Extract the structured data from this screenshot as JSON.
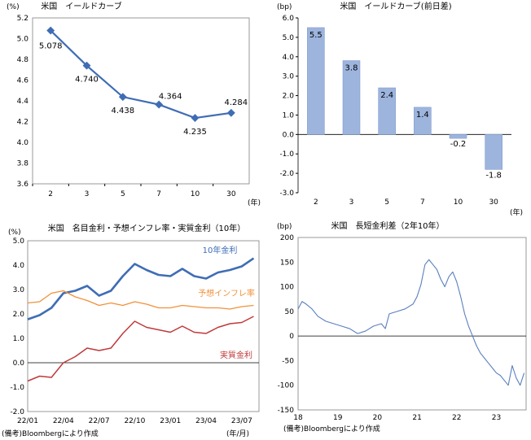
{
  "colors": {
    "blue": "#3f6db5",
    "bar": "#9db4dd",
    "bar_stroke": "#7f9ccf",
    "orange": "#f1913b",
    "red": "#c0393b",
    "lightblue": "#5a7fbf",
    "axis": "#000000",
    "grid": "#bfbfbf"
  },
  "chart_data": [
    {
      "type": "line",
      "title": "米国　イールドカーブ",
      "unit": "(%)",
      "xunit": "(年)",
      "categories": [
        "2",
        "3",
        "5",
        "7",
        "10",
        "30"
      ],
      "series": [
        {
          "values": [
            5.078,
            4.74,
            4.438,
            4.364,
            4.235,
            4.284
          ]
        }
      ],
      "data_labels": [
        "5.078",
        "4.740",
        "4.438",
        "4.364",
        "4.235",
        "4.284"
      ],
      "ylim": [
        3.6,
        5.2
      ],
      "yticks": [
        "5.2",
        "5.0",
        "4.8",
        "4.6",
        "4.4",
        "4.2",
        "4.0",
        "3.8",
        "3.6"
      ]
    },
    {
      "type": "bar",
      "title": "米国　イールドカーブ(前日差)",
      "unit": "(bp)",
      "xunit": "(年)",
      "categories": [
        "2",
        "3",
        "5",
        "7",
        "10",
        "30"
      ],
      "values": [
        5.5,
        3.8,
        2.4,
        1.4,
        -0.2,
        -1.8
      ],
      "data_labels": [
        "5.5",
        "3.8",
        "2.4",
        "1.4",
        "-0.2",
        "-1.8"
      ],
      "ylim": [
        -3.0,
        6.0
      ],
      "yticks": [
        "6.0",
        "5.0",
        "4.0",
        "3.0",
        "2.0",
        "1.0",
        "0.0",
        "-1.0",
        "-2.0",
        "-3.0"
      ]
    },
    {
      "type": "line",
      "title": "米国　名目金利・予想インフレ率・実質金利（10年）",
      "unit": "(%)",
      "xunit": "(年/月)",
      "note": "(備考)Bloombergにより作成",
      "xticks": [
        "22/01",
        "22/04",
        "22/07",
        "22/10",
        "23/01",
        "23/04",
        "23/07"
      ],
      "ylim": [
        -2.0,
        5.0
      ],
      "yticks": [
        "5.0",
        "4.0",
        "3.0",
        "2.0",
        "1.0",
        "0.0",
        "-1.0",
        "-2.0"
      ],
      "series": [
        {
          "name": "10年金利",
          "x": [
            "22/01",
            "22/02",
            "22/03",
            "22/04",
            "22/05",
            "22/06",
            "22/07",
            "22/08",
            "22/09",
            "22/10",
            "22/11",
            "22/12",
            "23/01",
            "23/02",
            "23/03",
            "23/04",
            "23/05",
            "23/06",
            "23/07",
            "23/08"
          ],
          "values": [
            1.78,
            1.95,
            2.25,
            2.85,
            2.95,
            3.15,
            2.75,
            2.95,
            3.55,
            4.05,
            3.8,
            3.6,
            3.55,
            3.85,
            3.55,
            3.45,
            3.7,
            3.8,
            3.95,
            4.28
          ]
        },
        {
          "name": "予想インフレ率",
          "x": [
            "22/01",
            "22/02",
            "22/03",
            "22/04",
            "22/05",
            "22/06",
            "22/07",
            "22/08",
            "22/09",
            "22/10",
            "22/11",
            "22/12",
            "23/01",
            "23/02",
            "23/03",
            "23/04",
            "23/05",
            "23/06",
            "23/07",
            "23/08"
          ],
          "values": [
            2.45,
            2.5,
            2.85,
            2.95,
            2.7,
            2.55,
            2.35,
            2.45,
            2.35,
            2.5,
            2.4,
            2.25,
            2.25,
            2.35,
            2.3,
            2.25,
            2.25,
            2.2,
            2.3,
            2.35
          ]
        },
        {
          "name": "実質金利",
          "x": [
            "22/01",
            "22/02",
            "22/03",
            "22/04",
            "22/05",
            "22/06",
            "22/07",
            "22/08",
            "22/09",
            "22/10",
            "22/11",
            "22/12",
            "23/01",
            "23/02",
            "23/03",
            "23/04",
            "23/05",
            "23/06",
            "23/07",
            "23/08"
          ],
          "values": [
            -0.75,
            -0.55,
            -0.6,
            0.0,
            0.25,
            0.6,
            0.5,
            0.6,
            1.2,
            1.7,
            1.45,
            1.35,
            1.25,
            1.5,
            1.25,
            1.2,
            1.45,
            1.6,
            1.65,
            1.9
          ]
        }
      ]
    },
    {
      "type": "line",
      "title": "米国　長短金利差（2年10年）",
      "unit": "(bp)",
      "note": "(備考)Bloombergにより作成",
      "xticks": [
        "18",
        "19",
        "20",
        "21",
        "22",
        "23"
      ],
      "ylim": [
        -150,
        200
      ],
      "yticks": [
        "200",
        "150",
        "100",
        "50",
        "0",
        "-50",
        "-100",
        "-150"
      ],
      "series": [
        {
          "x": [
            2018.0,
            2018.1,
            2018.2,
            2018.35,
            2018.5,
            2018.7,
            2018.9,
            2019.1,
            2019.3,
            2019.5,
            2019.7,
            2019.9,
            2020.1,
            2020.2,
            2020.3,
            2020.5,
            2020.7,
            2020.9,
            2021.0,
            2021.1,
            2021.2,
            2021.3,
            2021.4,
            2021.5,
            2021.6,
            2021.7,
            2021.8,
            2021.9,
            2022.0,
            2022.1,
            2022.2,
            2022.3,
            2022.4,
            2022.5,
            2022.6,
            2022.7,
            2022.8,
            2022.9,
            2023.0,
            2023.1,
            2023.2,
            2023.3,
            2023.4,
            2023.5,
            2023.6,
            2023.7
          ],
          "values": [
            55,
            70,
            65,
            55,
            40,
            30,
            25,
            20,
            15,
            5,
            10,
            20,
            25,
            15,
            45,
            50,
            55,
            65,
            80,
            105,
            145,
            155,
            145,
            135,
            115,
            100,
            120,
            130,
            110,
            80,
            45,
            20,
            0,
            -20,
            -35,
            -45,
            -55,
            -65,
            -75,
            -80,
            -90,
            -100,
            -60,
            -85,
            -100,
            -75
          ]
        }
      ]
    }
  ]
}
